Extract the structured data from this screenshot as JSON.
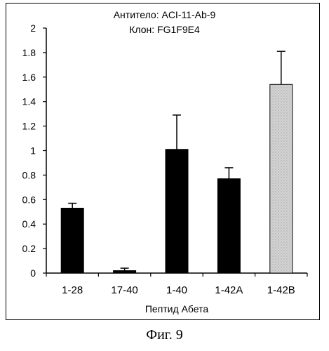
{
  "caption": "Фиг. 9",
  "chart_data": {
    "type": "bar",
    "title": [
      "Антитело: ACI-11-Ab-9",
      "Клон: FG1F9E4"
    ],
    "xlabel": "Пептид Абета",
    "ylabel": "",
    "ylim": [
      0,
      2
    ],
    "yticks": [
      0,
      0.2,
      0.4,
      0.6,
      0.8,
      1,
      1.2,
      1.4,
      1.6,
      1.8,
      2
    ],
    "ytick_labels": [
      "0",
      "0.2",
      "0.4",
      "0.6",
      "0.8",
      "1",
      "1.2",
      "1.4",
      "1.6",
      "1.8",
      "2"
    ],
    "categories": [
      "1-28",
      "17-40",
      "1-40",
      "1-42A",
      "1-42B"
    ],
    "values": [
      0.53,
      0.02,
      1.01,
      0.77,
      1.54
    ],
    "errors": [
      0.04,
      0.02,
      0.28,
      0.09,
      0.27
    ],
    "bar_fill": [
      "solid",
      "solid",
      "solid",
      "solid",
      "stippled"
    ],
    "grid": false,
    "colors": {
      "bar": "#000000",
      "highlight_bar": "#c9c9c9"
    }
  }
}
